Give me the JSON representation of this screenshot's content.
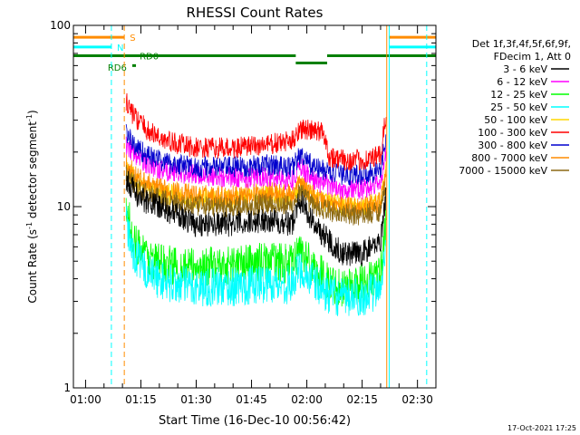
{
  "chart_data": {
    "type": "line",
    "title": "RHESSI Count Rates",
    "xlabel": "Start Time (16-Dec-10 00:56:42)",
    "ylabel": "Count Rate (s⁻¹ detector segment⁻¹)",
    "ylabel_parts": [
      "Count Rate (s",
      "-1",
      " detector segment",
      "-1",
      ")"
    ],
    "yscale": "log",
    "ylim": [
      1,
      100
    ],
    "y_ticks": [
      1,
      10,
      100
    ],
    "y_tick_labels": [
      "1",
      "10",
      "100"
    ],
    "xlim": [
      "00:56:42",
      "02:35:00"
    ],
    "x_ticks": [
      "01:00",
      "01:15",
      "01:30",
      "01:45",
      "02:00",
      "02:15",
      "02:30"
    ],
    "legend_position": "right",
    "legend_header": [
      "Det 1f,3f,4f,5f,6f,9f,",
      "FDecim 1, Att 0"
    ],
    "timestamp": "17-Oct-2021 17:25",
    "vertical_markers": [
      {
        "time": "00:56:42",
        "color": "#00ffff",
        "style": "solid"
      },
      {
        "time": "01:07:00",
        "color": "#00ffff",
        "style": "dashed"
      },
      {
        "time": "01:10:30",
        "color": "#ff8c00",
        "style": "dashed"
      },
      {
        "time": "02:21:40",
        "color": "#ff8c00",
        "style": "solid"
      },
      {
        "time": "02:22:20",
        "color": "#00ffff",
        "style": "solid"
      },
      {
        "time": "02:32:30",
        "color": "#00ffff",
        "style": "dashed"
      }
    ],
    "state_bars": [
      {
        "label": "S",
        "color": "#ff8c00",
        "segments": [
          [
            "00:56:42",
            "01:10:30"
          ],
          [
            "02:22:20",
            "02:35:00"
          ]
        ],
        "level": 86
      },
      {
        "label": "N",
        "color": "#00ffff",
        "segments": [
          [
            "00:56:42",
            "01:07:00"
          ],
          [
            "02:22:20",
            "02:35:00"
          ]
        ],
        "level": 76
      },
      {
        "label": "RD0",
        "color": "#008000",
        "segments": [
          [
            "00:56:42",
            "01:57:00"
          ],
          [
            "02:05:30",
            "02:35:00"
          ]
        ],
        "level": 68
      },
      {
        "label": "RD6",
        "color": "#008000",
        "segments": [
          [
            "01:57:00",
            "02:05:30"
          ]
        ],
        "level": 62
      },
      {
        "label": "",
        "color": "#008000",
        "segments": [
          [
            "01:12:40",
            "01:13:40"
          ]
        ],
        "level": 60
      }
    ],
    "bar_labels": [
      {
        "text": "S",
        "time": "01:12:00",
        "level": 86,
        "color": "#ff8c00"
      },
      {
        "text": "N",
        "time": "01:08:30",
        "level": 76,
        "color": "#00ffff"
      },
      {
        "text": "RD0",
        "time": "01:14:40",
        "level": 68,
        "color": "#008000"
      },
      {
        "text": "RD6",
        "time": "01:06:00",
        "level": 59,
        "color": "#008000"
      }
    ],
    "series": [
      {
        "name": "3 - 6 keV",
        "color": "#000000",
        "time": [
          "01:11:00",
          "01:15:00",
          "01:20:00",
          "01:30:00",
          "01:40:00",
          "01:50:00",
          "01:56:00",
          "01:58:00",
          "02:02:00",
          "02:06:00",
          "02:10:00",
          "02:15:00",
          "02:20:00",
          "02:21:30"
        ],
        "values": [
          14,
          11,
          10,
          8,
          8,
          8.5,
          8,
          11,
          8,
          6.5,
          5.5,
          5.5,
          6.5,
          12
        ]
      },
      {
        "name": "6 - 12 keV",
        "color": "#ff00ff",
        "time": [
          "01:11:00",
          "01:15:00",
          "01:20:00",
          "01:30:00",
          "01:40:00",
          "01:50:00",
          "01:56:00",
          "01:58:00",
          "02:02:00",
          "02:06:00",
          "02:10:00",
          "02:15:00",
          "02:20:00",
          "02:21:30"
        ],
        "values": [
          22,
          18,
          16,
          15,
          14.5,
          14.5,
          14,
          17,
          14,
          13,
          12.5,
          12.5,
          13.5,
          20
        ]
      },
      {
        "name": "12 - 25 keV",
        "color": "#00ff00",
        "time": [
          "01:11:00",
          "01:13:00",
          "01:17:00",
          "01:22:00",
          "01:30:00",
          "01:40:00",
          "01:50:00",
          "01:56:00",
          "01:58:00",
          "02:02:00",
          "02:06:00",
          "02:10:00",
          "02:15:00",
          "02:20:00",
          "02:21:30"
        ],
        "values": [
          10,
          6.5,
          5.2,
          4.8,
          4.6,
          4.8,
          5,
          4.8,
          5.8,
          4.6,
          3.8,
          3.6,
          3.8,
          4.2,
          8
        ]
      },
      {
        "name": "25 - 50 keV",
        "color": "#00ffff",
        "time": [
          "01:11:00",
          "01:13:00",
          "01:17:00",
          "01:22:00",
          "01:30:00",
          "01:40:00",
          "01:50:00",
          "01:56:00",
          "01:58:00",
          "02:02:00",
          "02:06:00",
          "02:10:00",
          "02:15:00",
          "02:20:00",
          "02:21:30"
        ],
        "values": [
          8,
          5.5,
          4.3,
          3.8,
          3.6,
          3.6,
          3.8,
          3.7,
          4.6,
          3.8,
          3.3,
          3.1,
          3.2,
          3.5,
          7
        ]
      },
      {
        "name": "50 - 100 keV",
        "color": "#ffd700",
        "time": [
          "01:11:00",
          "01:15:00",
          "01:20:00",
          "01:30:00",
          "01:40:00",
          "01:50:00",
          "01:56:00",
          "01:58:00",
          "02:02:00",
          "02:06:00",
          "02:10:00",
          "02:15:00",
          "02:20:00",
          "02:21:30"
        ],
        "values": [
          16,
          13,
          12,
          11,
          11,
          11.5,
          11,
          13,
          11,
          10.5,
          10,
          10,
          10.5,
          16
        ]
      },
      {
        "name": "100 - 300 keV",
        "color": "#ff0000",
        "time": [
          "01:11:00",
          "01:13:00",
          "01:17:00",
          "01:22:00",
          "01:30:00",
          "01:40:00",
          "01:50:00",
          "01:56:00",
          "01:58:00",
          "02:02:00",
          "02:04:30",
          "02:06:00",
          "02:10:00",
          "02:15:00",
          "02:20:00",
          "02:21:30"
        ],
        "values": [
          38,
          32,
          26,
          23,
          21,
          21,
          22,
          23,
          27,
          26,
          26,
          19,
          18,
          18,
          19,
          32
        ]
      },
      {
        "name": "300 - 800 keV",
        "color": "#0000cd",
        "time": [
          "01:11:00",
          "01:13:00",
          "01:17:00",
          "01:22:00",
          "01:30:00",
          "01:40:00",
          "01:50:00",
          "01:56:00",
          "01:58:00",
          "02:02:00",
          "02:06:00",
          "02:10:00",
          "02:15:00",
          "02:20:00",
          "02:21:30"
        ],
        "values": [
          26,
          22,
          19,
          17.5,
          16.5,
          16.5,
          17,
          16.5,
          19,
          16.5,
          15.5,
          15,
          15,
          16,
          24
        ]
      },
      {
        "name": "800 - 7000 keV",
        "color": "#ff8c00",
        "time": [
          "01:11:00",
          "01:15:00",
          "01:20:00",
          "01:30:00",
          "01:40:00",
          "01:50:00",
          "01:56:00",
          "01:58:00",
          "02:02:00",
          "02:06:00",
          "02:10:00",
          "02:15:00",
          "02:20:00",
          "02:21:30"
        ],
        "values": [
          17,
          14,
          12.5,
          11.5,
          11.5,
          12,
          11.5,
          13.5,
          11.5,
          10.5,
          10,
          10,
          10.5,
          15
        ]
      },
      {
        "name": "7000 - 15000 keV",
        "color": "#8b6914",
        "time": [
          "01:11:00",
          "01:15:00",
          "01:20:00",
          "01:30:00",
          "01:40:00",
          "01:50:00",
          "01:56:00",
          "01:58:00",
          "02:02:00",
          "02:06:00",
          "02:10:00",
          "02:15:00",
          "02:20:00",
          "02:21:30"
        ],
        "values": [
          15,
          12,
          11,
          10,
          10,
          10.5,
          10,
          12,
          10,
          9.5,
          9,
          9,
          9.5,
          14
        ]
      }
    ]
  }
}
